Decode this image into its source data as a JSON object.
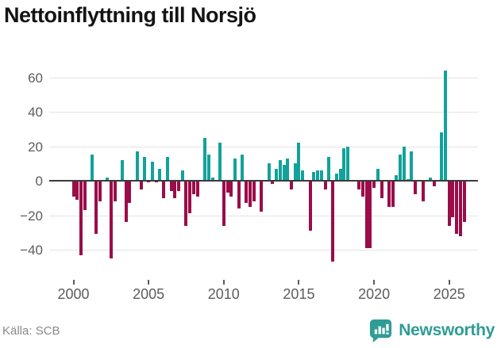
{
  "title": "Nettoinflyttning till Norsjö",
  "footer": {
    "source_label": "Källa: SCB"
  },
  "logo": {
    "text": "Newsworthy",
    "icon": "bar-chart-speech-bubble-icon",
    "color": "#2f9c95"
  },
  "colors": {
    "positive_bar": "#12a29b",
    "negative_bar": "#9b0c49",
    "grid": "#e4e4e4",
    "zero_line": "#3b3b3b",
    "axis_text": "#5c5c5c",
    "title_text": "#141414",
    "source_text": "#8a8a8a"
  },
  "chart_data": {
    "type": "bar",
    "title": "Nettoinflyttning till Norsjö",
    "xlabel": "",
    "ylabel": "",
    "frequency": "quarterly",
    "x_start": "2000Q1",
    "x_end": "2026Q1",
    "bars_per_year": 4,
    "x_tick_years": [
      2000,
      2005,
      2010,
      2015,
      2020,
      2025
    ],
    "y_ticks": [
      60,
      40,
      20,
      0,
      -20,
      -40
    ],
    "y_tick_labels": [
      "60",
      "40",
      "20",
      "0",
      "−20",
      "−40"
    ],
    "ylim": [
      -48,
      68
    ],
    "grid": true,
    "legend": false,
    "values": [
      -9,
      -11,
      -43,
      -17,
      0,
      15,
      -31,
      -12,
      0,
      2,
      -45,
      -12,
      0,
      12,
      -24,
      -13,
      0,
      17,
      -5,
      14,
      -1,
      11,
      -1,
      7,
      -10,
      14,
      -6,
      -10,
      -6,
      6,
      -26,
      -19,
      -8,
      -9,
      0,
      25,
      15,
      2,
      0,
      22,
      -26,
      -7,
      -9,
      13,
      -16,
      15,
      -13,
      -15,
      -12,
      0,
      -18,
      0,
      10,
      -2,
      7,
      12,
      9,
      13,
      -5,
      10,
      22,
      6,
      0,
      -29,
      5,
      6,
      6,
      -5,
      14,
      -47,
      4,
      7,
      19,
      20,
      0,
      0,
      -5,
      -9,
      -39,
      -39,
      -4,
      7,
      -10,
      0,
      -15,
      -15,
      3,
      15,
      20,
      1,
      17,
      -8,
      0,
      -12,
      0,
      2,
      -3,
      0,
      28,
      64,
      -26,
      -21,
      -31,
      -32,
      -24
    ]
  }
}
